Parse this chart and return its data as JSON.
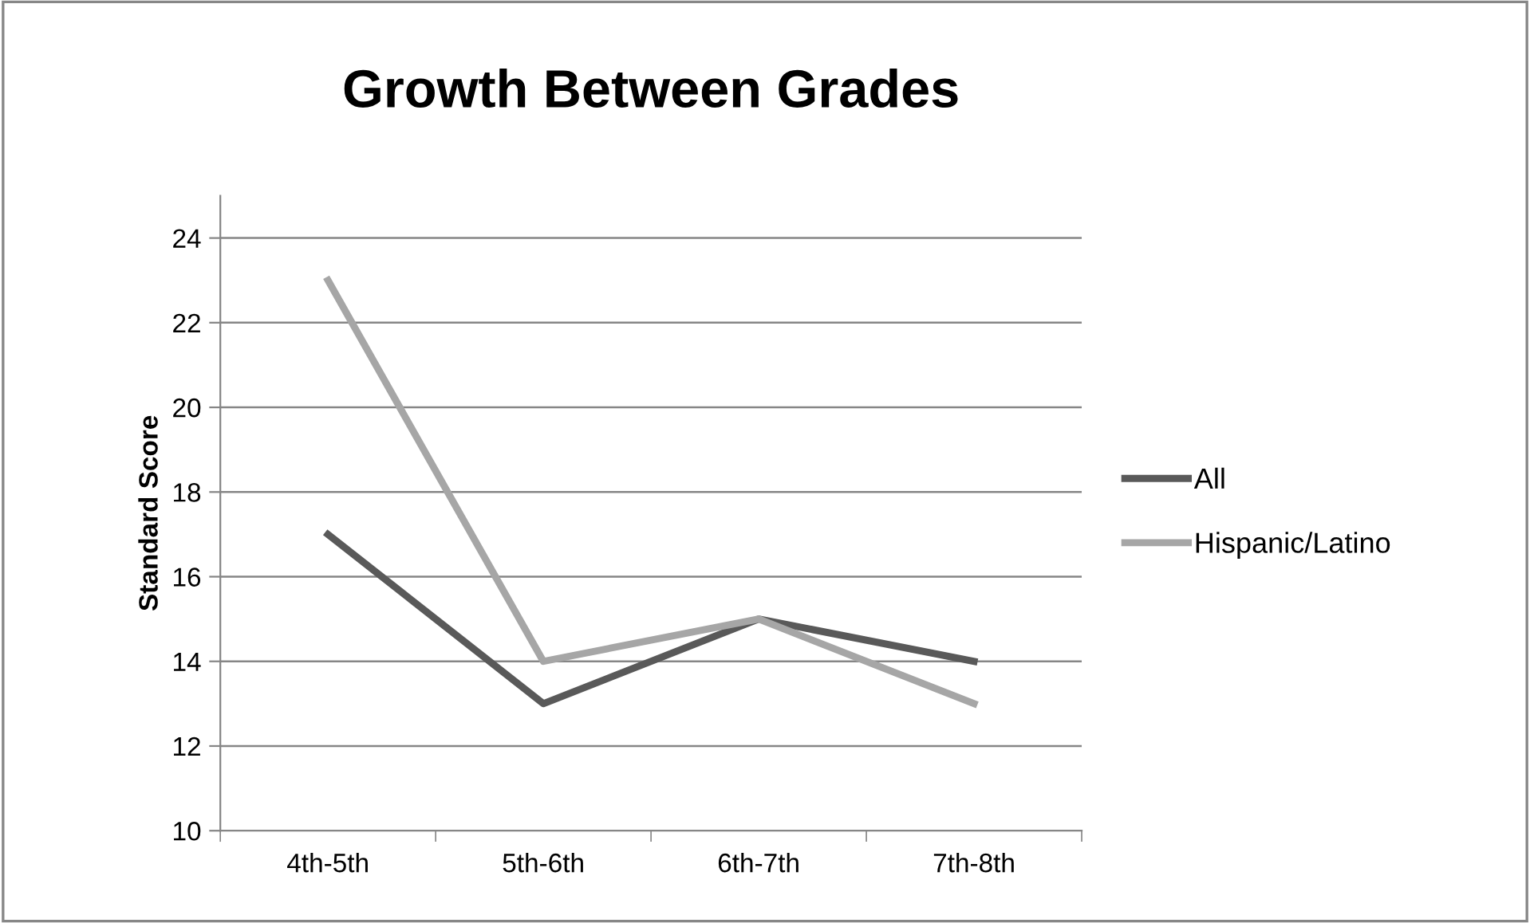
{
  "chart_data": {
    "type": "line",
    "title": "Growth Between Grades",
    "ylabel": "Standard Score",
    "categories": [
      "4th-5th",
      "5th-6th",
      "6th-7th",
      "7th-8th"
    ],
    "series": [
      {
        "name": "All",
        "color": "#595959",
        "values": [
          17,
          13,
          15,
          14
        ]
      },
      {
        "name": "Hispanic/Latino",
        "color": "#a6a6a6",
        "values": [
          23,
          14,
          15,
          13
        ]
      }
    ],
    "ylim": [
      10,
      25
    ],
    "yticks": [
      10,
      12,
      14,
      16,
      18,
      20,
      22,
      24
    ],
    "grid": "y",
    "legend": "right",
    "marker": "none",
    "line_style": "solid"
  }
}
